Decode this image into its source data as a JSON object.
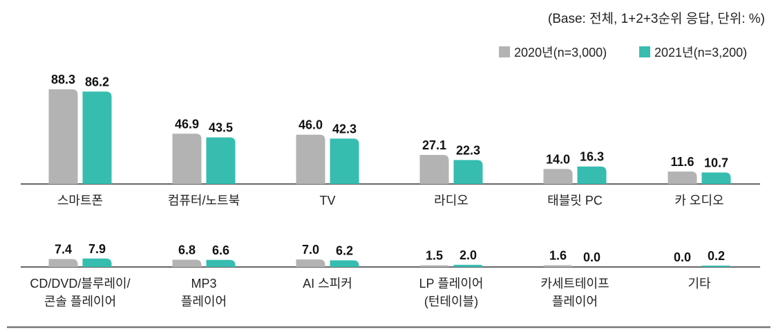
{
  "note": "(Base: 전체, 1+2+3순위 응답, 단위: %)",
  "chart_data": {
    "type": "bar",
    "title": "",
    "xlabel": "",
    "ylabel": "",
    "unit": "%",
    "legend_position": "top-right",
    "grid": false,
    "series": [
      {
        "name": "2020년(n=3,000)",
        "color": "#b3b3b3"
      },
      {
        "name": "2021년(n=3,200)",
        "color": "#36bdb0"
      }
    ],
    "rows": [
      {
        "categories": [
          "스마트폰",
          "컴퓨터/노트북",
          "TV",
          "라디오",
          "태블릿 PC",
          "카 오디오"
        ],
        "values_2020": [
          88.3,
          46.9,
          46.0,
          27.1,
          14.0,
          11.6
        ],
        "values_2021": [
          86.2,
          43.5,
          42.3,
          22.3,
          16.3,
          10.7
        ]
      },
      {
        "categories": [
          "CD/DVD/블루레이/\n콘솔 플레이어",
          "MP3\n플레이어",
          "AI 스피커",
          "LP 플레이어\n(턴테이블)",
          "카세트테이프\n플레이어",
          "기타"
        ],
        "values_2020": [
          7.4,
          6.8,
          7.0,
          1.5,
          1.6,
          0.0
        ],
        "values_2021": [
          7.9,
          6.6,
          6.2,
          2.0,
          0.0,
          0.2
        ]
      }
    ]
  }
}
